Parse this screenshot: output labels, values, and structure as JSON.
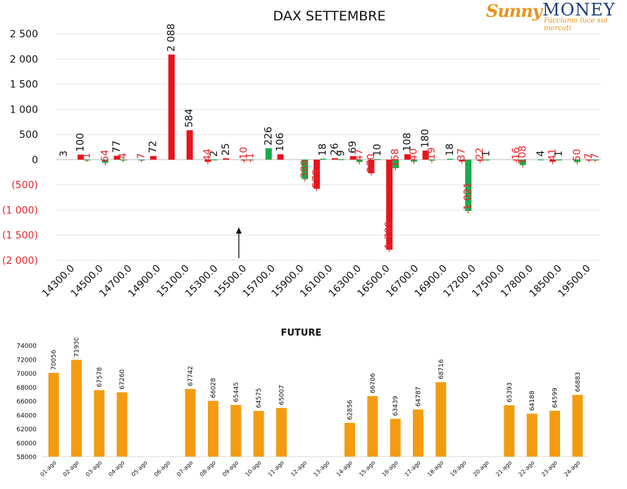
{
  "logo": {
    "brand_first": "Sunny",
    "brand_second": "MONEY",
    "tagline": "Facciamo luce sui mercati"
  },
  "chart_data": [
    {
      "type": "bar",
      "title": "DAX SETTEMBRE",
      "ylim": [
        -2000,
        2500
      ],
      "y_ticks": [
        2500,
        2000,
        1500,
        1000,
        500,
        0,
        -500,
        -1000,
        -1500,
        -2000
      ],
      "y_tick_labels": [
        "2 500",
        "2 000",
        "1 500",
        "1 000",
        "500",
        "0",
        "(500)",
        "(1 000)",
        "(1 500)",
        "(2 000)"
      ],
      "negative_color": "#e8252a",
      "tick_labels": [
        "14300.0",
        "14500.0",
        "14700.0",
        "14900.0",
        "15100.0",
        "15300.0",
        "15500.0",
        "15700.0",
        "15900.0",
        "16100.0",
        "16300.0",
        "16500.0",
        "16700.0",
        "16900.0",
        "17200.0",
        "17500.0",
        "17800.0",
        "18500.0",
        "19500.0"
      ],
      "series": [
        {
          "color": "#e8141c",
          "values": [
            [
              1,
              100
            ],
            [
              3,
              77
            ],
            [
              5,
              72
            ],
            [
              6,
              2088
            ],
            [
              7,
              584
            ],
            [
              8,
              -44
            ],
            [
              9,
              25
            ],
            [
              10,
              -10
            ],
            [
              12,
              106
            ],
            [
              14,
              -578
            ],
            [
              15,
              26
            ],
            [
              16,
              69
            ],
            [
              17,
              -270
            ],
            [
              18,
              -1789
            ],
            [
              19,
              108
            ],
            [
              20,
              180
            ],
            [
              22,
              -37
            ],
            [
              23,
              -22
            ],
            [
              25,
              -16
            ],
            [
              27,
              -41
            ],
            [
              29,
              -7
            ]
          ]
        },
        {
          "color": "#1aab4b",
          "values": [
            [
              1,
              -1
            ],
            [
              2,
              -64
            ],
            [
              3,
              -4
            ],
            [
              4,
              -7
            ],
            [
              8,
              2
            ],
            [
              10,
              -1
            ],
            [
              11,
              226
            ],
            [
              13,
              -388
            ],
            [
              14,
              18
            ],
            [
              15,
              9
            ],
            [
              16,
              -47
            ],
            [
              17,
              10
            ],
            [
              18,
              -168
            ],
            [
              19,
              -40
            ],
            [
              20,
              -19
            ],
            [
              21,
              18
            ],
            [
              22,
              -1021
            ],
            [
              23,
              1
            ],
            [
              25,
              -108
            ],
            [
              26,
              4
            ],
            [
              27,
              1
            ],
            [
              28,
              -50
            ],
            [
              29,
              -7
            ]
          ]
        }
      ],
      "zero_labels": [
        [
          0,
          3
        ]
      ],
      "annotation": "arrow"
    },
    {
      "type": "bar",
      "title": "FUTURE",
      "ylim": [
        58000,
        74000
      ],
      "y_ticks": [
        74000,
        72000,
        70000,
        68000,
        66000,
        64000,
        62000,
        60000,
        58000
      ],
      "color": "#f39c12",
      "categories": [
        "01-ago",
        "02-ago",
        "03-ago",
        "04-ago",
        "05-ago",
        "06-ago",
        "07-ago",
        "08-ago",
        "09-ago",
        "10-ago",
        "11-ago",
        "12-ago",
        "13-ago",
        "14-ago",
        "15-ago",
        "16-ago",
        "17-ago",
        "18-ago",
        "19-ago",
        "20-ago",
        "21-ago",
        "22-ago",
        "23-ago",
        "24-ago"
      ],
      "values": [
        70056,
        71930,
        67578,
        67260,
        null,
        null,
        67742,
        66028,
        65445,
        64575,
        65007,
        null,
        null,
        62856,
        66706,
        63439,
        64787,
        68716,
        null,
        null,
        65393,
        64188,
        64599,
        66883
      ]
    }
  ]
}
